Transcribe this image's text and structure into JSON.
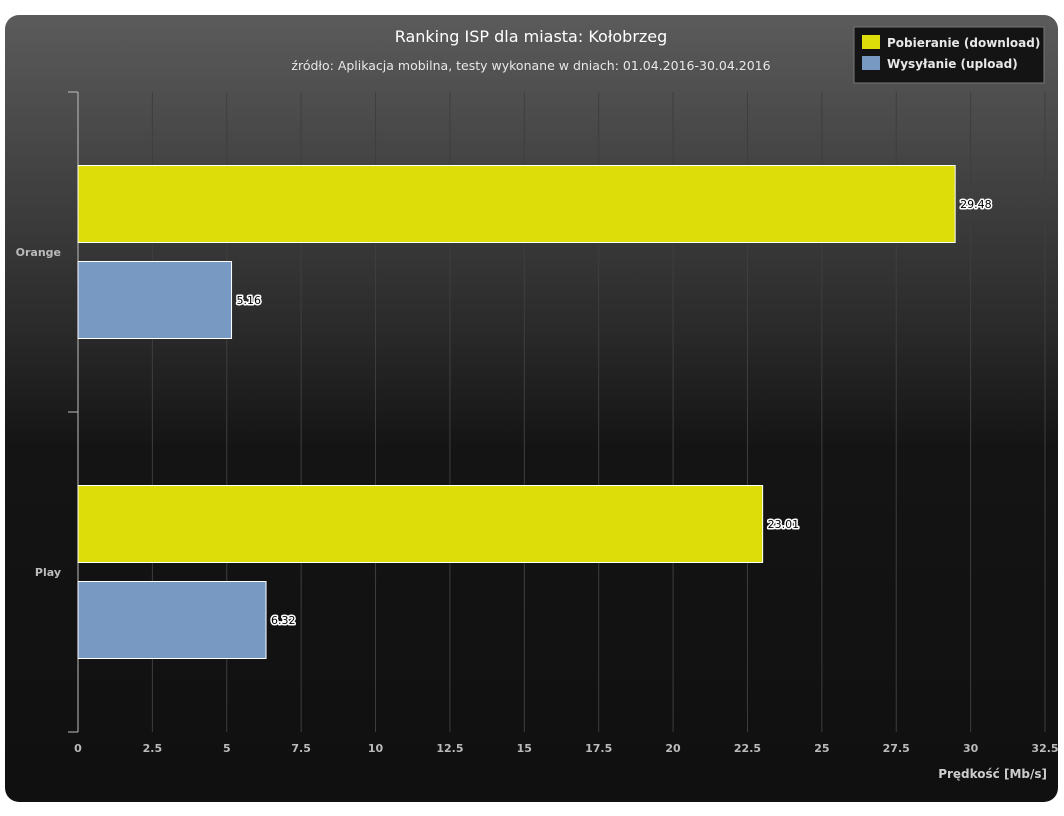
{
  "chart_data": {
    "type": "bar",
    "orientation": "horizontal",
    "title": "Ranking ISP dla miasta: Kołobrzeg",
    "subtitle": "źródło: Aplikacja mobilna, testy wykonane w dniach: 01.04.2016-30.04.2016",
    "xlabel": "Prędkość [Mb/s]",
    "ylabel": "",
    "categories": [
      "Orange",
      "Play"
    ],
    "series": [
      {
        "name": "Pobieranie (download)",
        "color": "#dddd0a",
        "values": [
          29.48,
          23.01
        ],
        "labels": [
          "29.48",
          "23.01"
        ]
      },
      {
        "name": "Wysyłanie (upload)",
        "color": "#7799c2",
        "values": [
          5.16,
          6.32
        ],
        "labels": [
          "5.16",
          "6.32"
        ]
      }
    ],
    "xlim": [
      0,
      32.5
    ],
    "ticks": [
      "0",
      "2.5",
      "5",
      "7.5",
      "10",
      "12.5",
      "15",
      "17.5",
      "20",
      "22.5",
      "25",
      "27.5",
      "30",
      "32.5"
    ],
    "grid": true,
    "legend_position": "top-right"
  }
}
